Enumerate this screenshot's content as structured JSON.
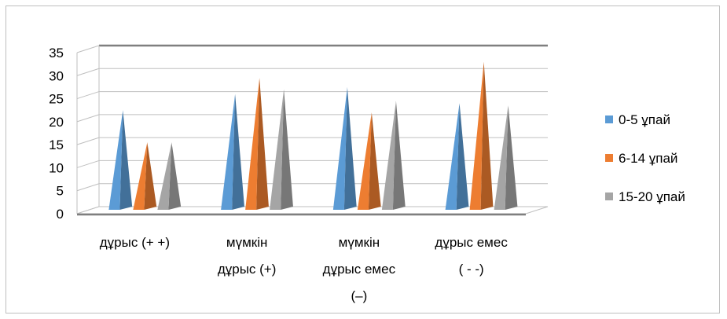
{
  "chart_data": {
    "type": "bar",
    "shape": "3d-pyramid",
    "categories": [
      [
        "дұрыс (+ +)"
      ],
      [
        "мүмкін",
        "дұрыс (+)"
      ],
      [
        "мүмкін",
        "дұрыс емес",
        "(–)"
      ],
      [
        "дұрыс емес",
        "( - -)"
      ]
    ],
    "series": [
      {
        "name": "0-5 ұпай",
        "color": "#5B9BD5",
        "values": [
          22,
          25.5,
          27,
          23.5
        ]
      },
      {
        "name": "6-14 ұпай",
        "color": "#ED7D31",
        "values": [
          15,
          29,
          21.5,
          32.5
        ]
      },
      {
        "name": "15-20 ұпай",
        "color": "#A5A5A5",
        "values": [
          15,
          26.5,
          24,
          23
        ]
      }
    ],
    "y_ticks": [
      "0",
      "5",
      "10",
      "15",
      "20",
      "25",
      "30",
      "35"
    ],
    "ylim": [
      0,
      35
    ],
    "grid": true,
    "legend": "right"
  }
}
